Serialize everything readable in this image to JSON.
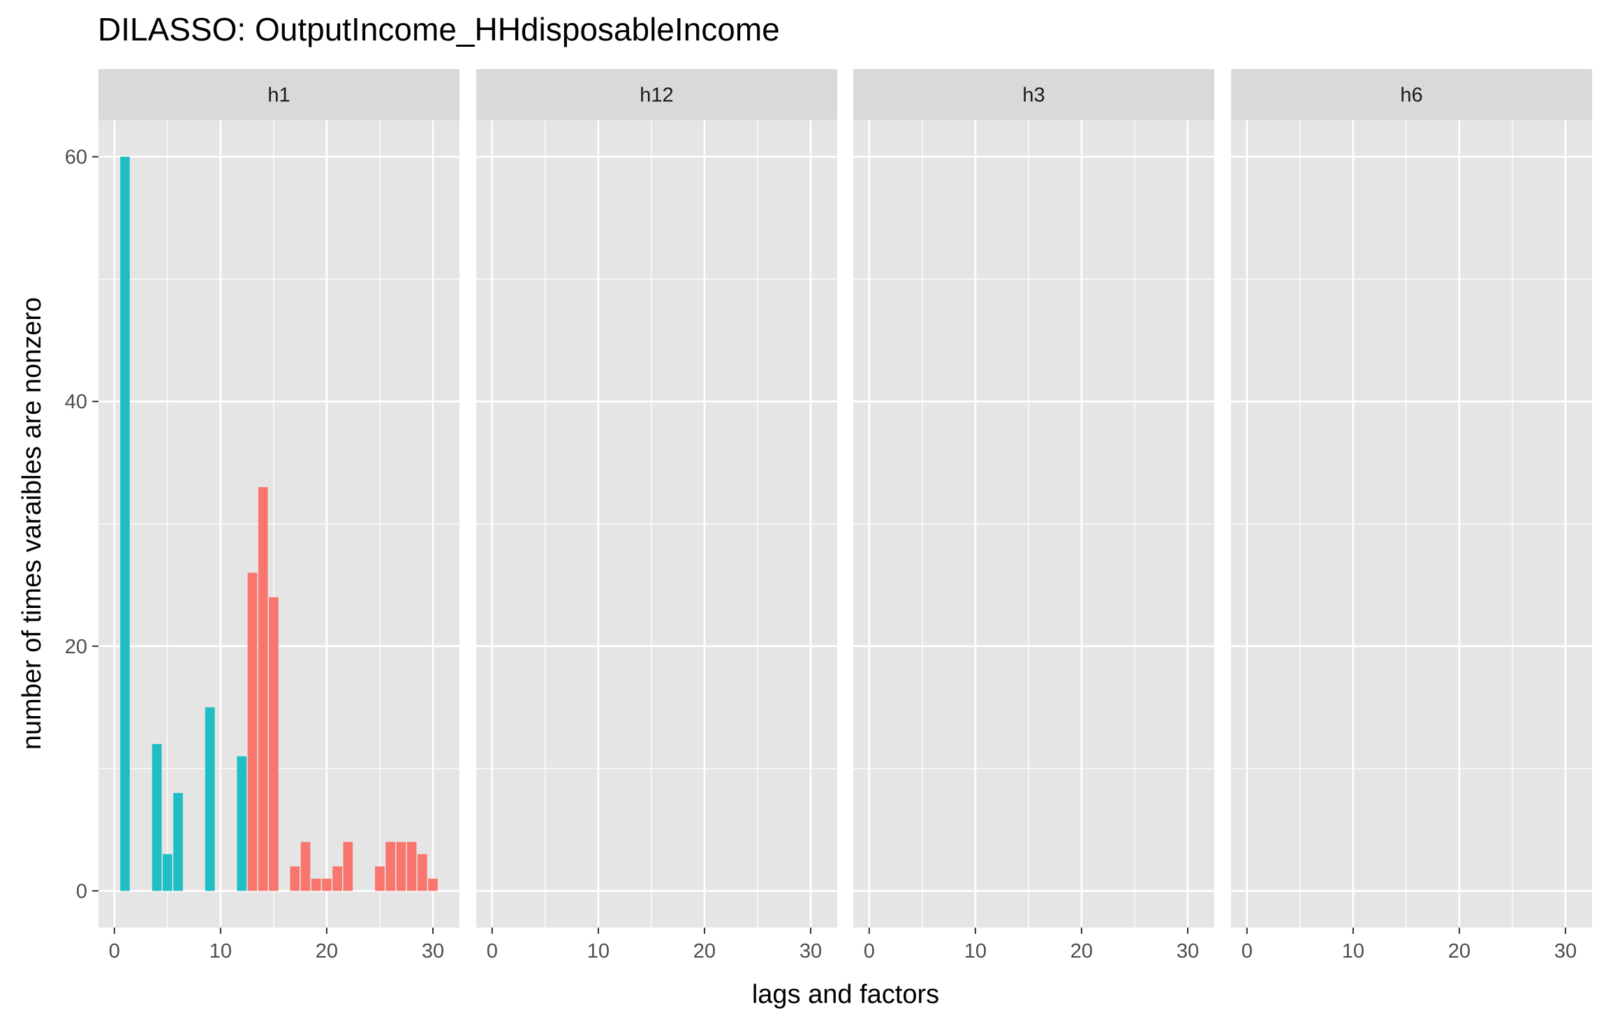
{
  "chart_data": {
    "type": "bar",
    "title": "DILASSO: OutputIncome_HHdisposableIncome",
    "xlabel": "lags and factors",
    "ylabel": "number of times varaibles are nonzero",
    "xlim": [
      -1.5,
      32.5
    ],
    "ylim": [
      -3,
      63
    ],
    "x_ticks": [
      0,
      10,
      20,
      30
    ],
    "y_ticks": [
      0,
      20,
      40,
      60
    ],
    "grid": true,
    "colors": {
      "teal": "#1fbdc4",
      "salmon": "#f8766d",
      "panel_bg": "#e5e5e5",
      "strip_bg": "#d9d9d9",
      "grid": "#ffffff"
    },
    "panels": [
      {
        "label": "h1",
        "bars": [
          {
            "x": 1,
            "y": 60,
            "color": "teal"
          },
          {
            "x": 4,
            "y": 12,
            "color": "teal"
          },
          {
            "x": 5,
            "y": 3,
            "color": "teal"
          },
          {
            "x": 6,
            "y": 8,
            "color": "teal"
          },
          {
            "x": 9,
            "y": 15,
            "color": "teal"
          },
          {
            "x": 12,
            "y": 11,
            "color": "teal"
          },
          {
            "x": 13,
            "y": 26,
            "color": "salmon"
          },
          {
            "x": 14,
            "y": 33,
            "color": "salmon"
          },
          {
            "x": 15,
            "y": 24,
            "color": "salmon"
          },
          {
            "x": 17,
            "y": 2,
            "color": "salmon"
          },
          {
            "x": 18,
            "y": 4,
            "color": "salmon"
          },
          {
            "x": 19,
            "y": 1,
            "color": "salmon"
          },
          {
            "x": 20,
            "y": 1,
            "color": "salmon"
          },
          {
            "x": 21,
            "y": 2,
            "color": "salmon"
          },
          {
            "x": 22,
            "y": 4,
            "color": "salmon"
          },
          {
            "x": 25,
            "y": 2,
            "color": "salmon"
          },
          {
            "x": 26,
            "y": 4,
            "color": "salmon"
          },
          {
            "x": 27,
            "y": 4,
            "color": "salmon"
          },
          {
            "x": 28,
            "y": 4,
            "color": "salmon"
          },
          {
            "x": 29,
            "y": 3,
            "color": "salmon"
          },
          {
            "x": 30,
            "y": 1,
            "color": "salmon"
          }
        ]
      },
      {
        "label": "h12",
        "bars": []
      },
      {
        "label": "h3",
        "bars": []
      },
      {
        "label": "h6",
        "bars": []
      }
    ]
  }
}
